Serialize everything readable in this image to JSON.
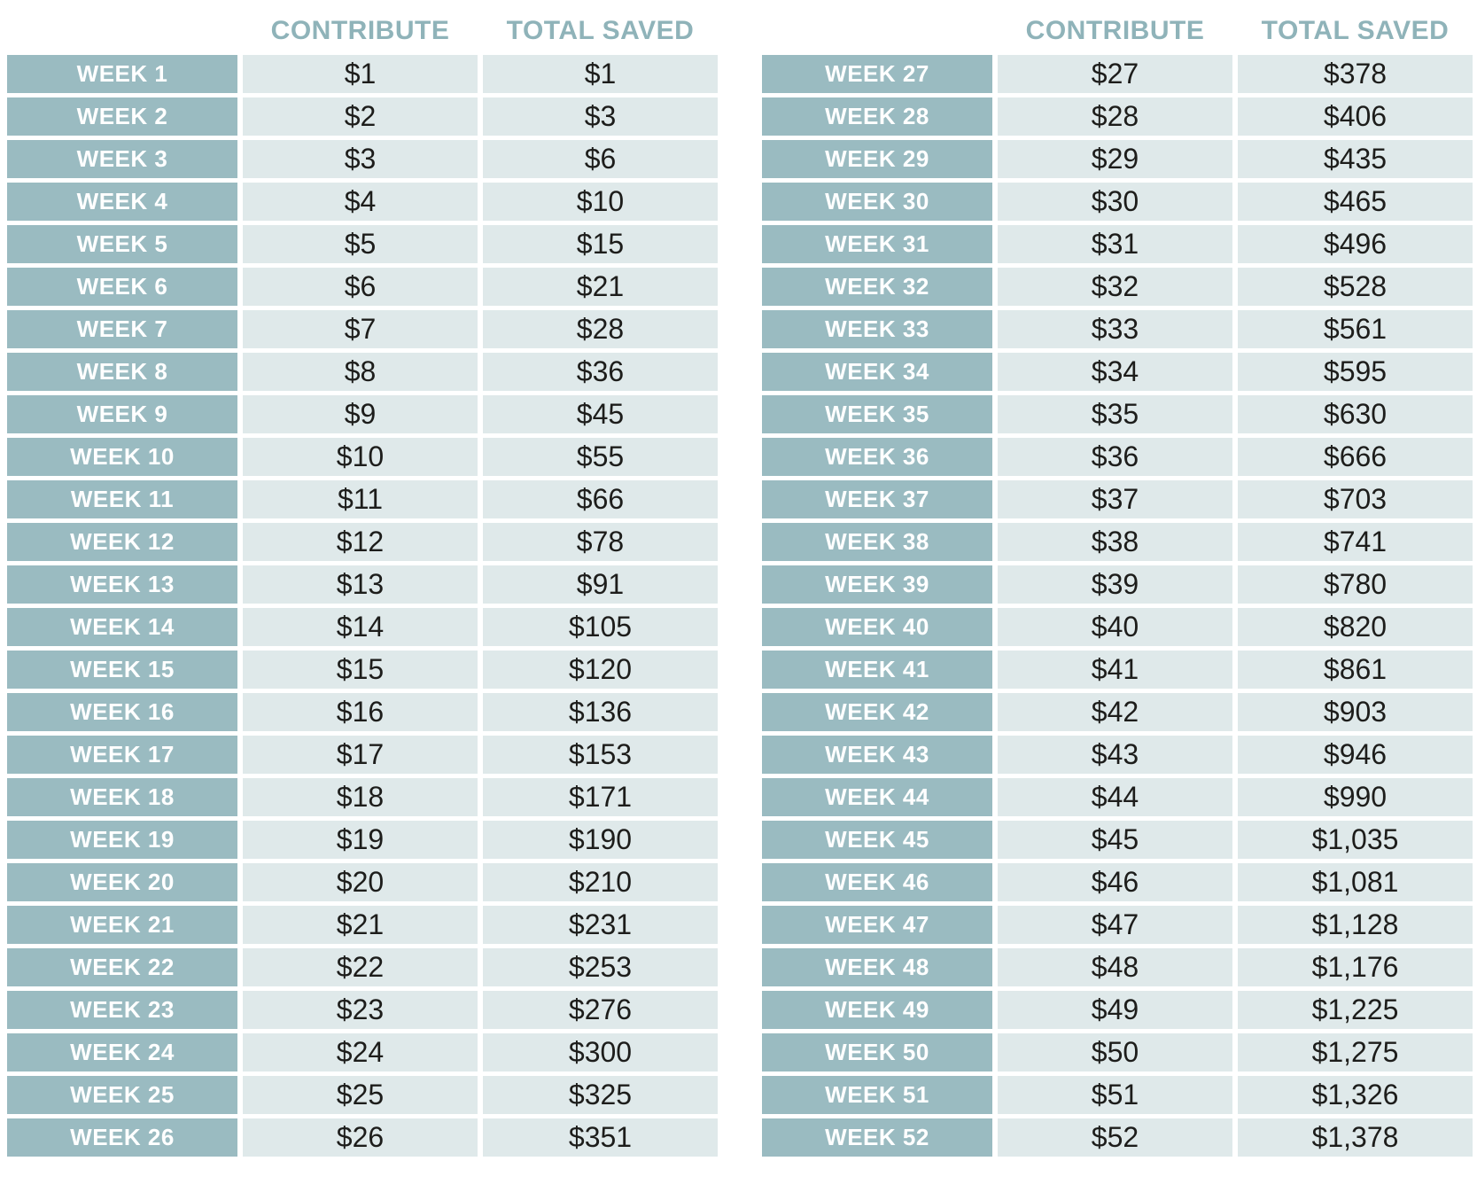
{
  "colors": {
    "week_cell_bg": "#9abbc1",
    "value_cell_bg": "#dfe9ea",
    "header_text": "#8fb3b9",
    "week_text": "#ffffff",
    "value_text": "#1d1d1b",
    "page_bg": "#ffffff"
  },
  "chart_data": {
    "type": "table",
    "columns": [
      "WEEK",
      "CONTRIBUTE",
      "TOTAL SAVED"
    ],
    "weeks": [
      1,
      2,
      3,
      4,
      5,
      6,
      7,
      8,
      9,
      10,
      11,
      12,
      13,
      14,
      15,
      16,
      17,
      18,
      19,
      20,
      21,
      22,
      23,
      24,
      25,
      26,
      27,
      28,
      29,
      30,
      31,
      32,
      33,
      34,
      35,
      36,
      37,
      38,
      39,
      40,
      41,
      42,
      43,
      44,
      45,
      46,
      47,
      48,
      49,
      50,
      51,
      52
    ],
    "contribute": [
      1,
      2,
      3,
      4,
      5,
      6,
      7,
      8,
      9,
      10,
      11,
      12,
      13,
      14,
      15,
      16,
      17,
      18,
      19,
      20,
      21,
      22,
      23,
      24,
      25,
      26,
      27,
      28,
      29,
      30,
      31,
      32,
      33,
      34,
      35,
      36,
      37,
      38,
      39,
      40,
      41,
      42,
      43,
      44,
      45,
      46,
      47,
      48,
      49,
      50,
      51,
      52
    ],
    "total_saved": [
      1,
      3,
      6,
      10,
      15,
      21,
      28,
      36,
      45,
      55,
      66,
      78,
      91,
      105,
      120,
      136,
      153,
      171,
      190,
      210,
      231,
      253,
      276,
      300,
      325,
      351,
      378,
      406,
      435,
      465,
      496,
      528,
      561,
      595,
      630,
      666,
      703,
      741,
      780,
      820,
      861,
      903,
      946,
      990,
      1035,
      1081,
      1128,
      1176,
      1225,
      1275,
      1326,
      1378
    ],
    "layout": "two side-by-side tables, weeks 1-26 left, weeks 27-52 right"
  },
  "tables": [
    {
      "headers": {
        "contribute": "CONTRIBUTE",
        "total_saved": "TOTAL SAVED"
      },
      "rows": [
        {
          "week": "WEEK 1",
          "contribute": "$1",
          "total": "$1"
        },
        {
          "week": "WEEK 2",
          "contribute": "$2",
          "total": "$3"
        },
        {
          "week": "WEEK 3",
          "contribute": "$3",
          "total": "$6"
        },
        {
          "week": "WEEK 4",
          "contribute": "$4",
          "total": "$10"
        },
        {
          "week": "WEEK 5",
          "contribute": "$5",
          "total": "$15"
        },
        {
          "week": "WEEK 6",
          "contribute": "$6",
          "total": "$21"
        },
        {
          "week": "WEEK 7",
          "contribute": "$7",
          "total": "$28"
        },
        {
          "week": "WEEK 8",
          "contribute": "$8",
          "total": "$36"
        },
        {
          "week": "WEEK 9",
          "contribute": "$9",
          "total": "$45"
        },
        {
          "week": "WEEK 10",
          "contribute": "$10",
          "total": "$55"
        },
        {
          "week": "WEEK 11",
          "contribute": "$11",
          "total": "$66"
        },
        {
          "week": "WEEK 12",
          "contribute": "$12",
          "total": "$78"
        },
        {
          "week": "WEEK 13",
          "contribute": "$13",
          "total": "$91"
        },
        {
          "week": "WEEK 14",
          "contribute": "$14",
          "total": "$105"
        },
        {
          "week": "WEEK 15",
          "contribute": "$15",
          "total": "$120"
        },
        {
          "week": "WEEK 16",
          "contribute": "$16",
          "total": "$136"
        },
        {
          "week": "WEEK 17",
          "contribute": "$17",
          "total": "$153"
        },
        {
          "week": "WEEK 18",
          "contribute": "$18",
          "total": "$171"
        },
        {
          "week": "WEEK 19",
          "contribute": "$19",
          "total": "$190"
        },
        {
          "week": "WEEK 20",
          "contribute": "$20",
          "total": "$210"
        },
        {
          "week": "WEEK 21",
          "contribute": "$21",
          "total": "$231"
        },
        {
          "week": "WEEK 22",
          "contribute": "$22",
          "total": "$253"
        },
        {
          "week": "WEEK 23",
          "contribute": "$23",
          "total": "$276"
        },
        {
          "week": "WEEK 24",
          "contribute": "$24",
          "total": "$300"
        },
        {
          "week": "WEEK 25",
          "contribute": "$25",
          "total": "$325"
        },
        {
          "week": "WEEK 26",
          "contribute": "$26",
          "total": "$351"
        }
      ]
    },
    {
      "headers": {
        "contribute": "CONTRIBUTE",
        "total_saved": "TOTAL SAVED"
      },
      "rows": [
        {
          "week": "WEEK 27",
          "contribute": "$27",
          "total": "$378"
        },
        {
          "week": "WEEK 28",
          "contribute": "$28",
          "total": "$406"
        },
        {
          "week": "WEEK 29",
          "contribute": "$29",
          "total": "$435"
        },
        {
          "week": "WEEK 30",
          "contribute": "$30",
          "total": "$465"
        },
        {
          "week": "WEEK 31",
          "contribute": "$31",
          "total": "$496"
        },
        {
          "week": "WEEK 32",
          "contribute": "$32",
          "total": "$528"
        },
        {
          "week": "WEEK 33",
          "contribute": "$33",
          "total": "$561"
        },
        {
          "week": "WEEK 34",
          "contribute": "$34",
          "total": "$595"
        },
        {
          "week": "WEEK 35",
          "contribute": "$35",
          "total": "$630"
        },
        {
          "week": "WEEK 36",
          "contribute": "$36",
          "total": "$666"
        },
        {
          "week": "WEEK 37",
          "contribute": "$37",
          "total": "$703"
        },
        {
          "week": "WEEK 38",
          "contribute": "$38",
          "total": "$741"
        },
        {
          "week": "WEEK 39",
          "contribute": "$39",
          "total": "$780"
        },
        {
          "week": "WEEK 40",
          "contribute": "$40",
          "total": "$820"
        },
        {
          "week": "WEEK 41",
          "contribute": "$41",
          "total": "$861"
        },
        {
          "week": "WEEK 42",
          "contribute": "$42",
          "total": "$903"
        },
        {
          "week": "WEEK 43",
          "contribute": "$43",
          "total": "$946"
        },
        {
          "week": "WEEK 44",
          "contribute": "$44",
          "total": "$990"
        },
        {
          "week": "WEEK 45",
          "contribute": "$45",
          "total": "$1,035"
        },
        {
          "week": "WEEK 46",
          "contribute": "$46",
          "total": "$1,081"
        },
        {
          "week": "WEEK 47",
          "contribute": "$47",
          "total": "$1,128"
        },
        {
          "week": "WEEK 48",
          "contribute": "$48",
          "total": "$1,176"
        },
        {
          "week": "WEEK 49",
          "contribute": "$49",
          "total": "$1,225"
        },
        {
          "week": "WEEK 50",
          "contribute": "$50",
          "total": "$1,275"
        },
        {
          "week": "WEEK 51",
          "contribute": "$51",
          "total": "$1,326"
        },
        {
          "week": "WEEK 52",
          "contribute": "$52",
          "total": "$1,378"
        }
      ]
    }
  ]
}
